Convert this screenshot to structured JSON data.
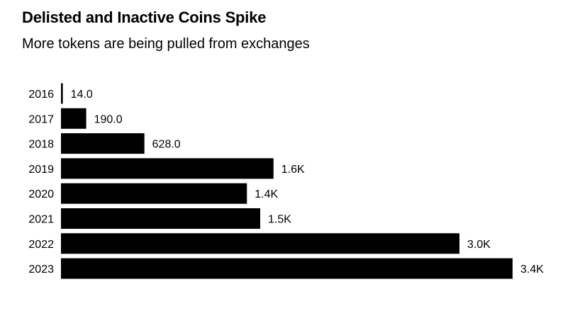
{
  "chart_data": {
    "type": "bar",
    "orientation": "horizontal",
    "title": "Delisted and Inactive Coins Spike",
    "subtitle": "More tokens are being pulled from exchanges",
    "categories": [
      "2016",
      "2017",
      "2018",
      "2019",
      "2020",
      "2021",
      "2022",
      "2023"
    ],
    "values": [
      14,
      190,
      628,
      1600,
      1400,
      1500,
      3000,
      3400
    ],
    "value_labels": [
      "14.0",
      "190.0",
      "628.0",
      "1.6K",
      "1.4K",
      "1.5K",
      "3.0K",
      "3.4K"
    ],
    "xlim": [
      0,
      3400
    ],
    "grid": false,
    "legend": "none",
    "bar_color": "#000000"
  }
}
